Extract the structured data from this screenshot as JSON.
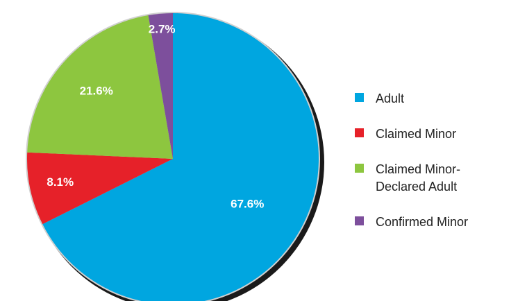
{
  "chart_data": {
    "type": "pie",
    "categories": [
      "Adult",
      "Claimed Minor",
      "Claimed Minor-Declared Adult",
      "Confirmed Minor"
    ],
    "values": [
      67.6,
      8.1,
      21.6,
      2.7
    ],
    "value_labels": [
      "67.6%",
      "8.1%",
      "21.6%",
      "2.7%"
    ],
    "colors": [
      "#00a6e0",
      "#e62129",
      "#8dc63f",
      "#7d4f9c"
    ],
    "legend": "right"
  }
}
